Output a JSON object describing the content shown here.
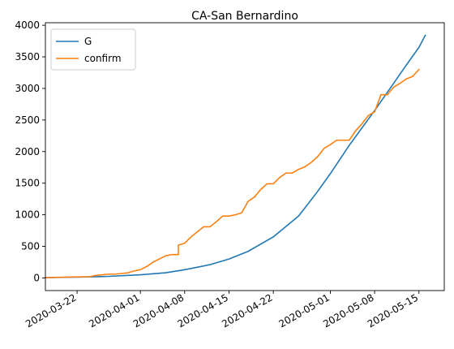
{
  "chart_data": {
    "type": "line",
    "title": "CA-San Bernardino",
    "xlabel": "",
    "ylabel": "",
    "ylim": [
      -200,
      4040
    ],
    "x_range": [
      "2020-03-17",
      "2020-05-19"
    ],
    "grid": false,
    "legend_position": "top-left",
    "y_ticks": [
      0,
      500,
      1000,
      1500,
      2000,
      2500,
      3000,
      3500,
      4000
    ],
    "x_ticks": [
      {
        "date": "2020-03-22",
        "label": "2020-03-22"
      },
      {
        "date": "2020-04-01",
        "label": "2020-04-01"
      },
      {
        "date": "2020-04-08",
        "label": "2020-04-08"
      },
      {
        "date": "2020-04-15",
        "label": "2020-04-15"
      },
      {
        "date": "2020-04-22",
        "label": "2020-04-22"
      },
      {
        "date": "2020-05-01",
        "label": "2020-05-01"
      },
      {
        "date": "2020-05-08",
        "label": "2020-05-08"
      },
      {
        "date": "2020-05-15",
        "label": "2020-05-15"
      }
    ],
    "series": [
      {
        "name": "G",
        "color": "#1f77b4",
        "points": [
          [
            "2020-03-17",
            5
          ],
          [
            "2020-03-22",
            12
          ],
          [
            "2020-03-27",
            25
          ],
          [
            "2020-04-01",
            50
          ],
          [
            "2020-04-05",
            82
          ],
          [
            "2020-04-08",
            130
          ],
          [
            "2020-04-12",
            210
          ],
          [
            "2020-04-15",
            300
          ],
          [
            "2020-04-18",
            420
          ],
          [
            "2020-04-22",
            650
          ],
          [
            "2020-04-26",
            980
          ],
          [
            "2020-04-29",
            1370
          ],
          [
            "2020-05-01",
            1650
          ],
          [
            "2020-05-04",
            2100
          ],
          [
            "2020-05-08",
            2650
          ],
          [
            "2020-05-11",
            3080
          ],
          [
            "2020-05-13",
            3370
          ],
          [
            "2020-05-15",
            3650
          ],
          [
            "2020-05-16",
            3840
          ]
        ]
      },
      {
        "name": "confirm",
        "color": "#ff7f0e",
        "points": [
          [
            "2020-03-17",
            5
          ],
          [
            "2020-03-19",
            10
          ],
          [
            "2020-03-21",
            15
          ],
          [
            "2020-03-24",
            20
          ],
          [
            "2020-03-25",
            40
          ],
          [
            "2020-03-26",
            50
          ],
          [
            "2020-03-27",
            60
          ],
          [
            "2020-03-28",
            60
          ],
          [
            "2020-03-29",
            70
          ],
          [
            "2020-03-30",
            80
          ],
          [
            "2020-03-31",
            110
          ],
          [
            "2020-04-01",
            130
          ],
          [
            "2020-04-02",
            180
          ],
          [
            "2020-04-03",
            250
          ],
          [
            "2020-04-04",
            300
          ],
          [
            "2020-04-05",
            350
          ],
          [
            "2020-04-06",
            370
          ],
          [
            "2020-04-07",
            370
          ],
          [
            "2020-04-07",
            520
          ],
          [
            "2020-04-08",
            550
          ],
          [
            "2020-04-09",
            650
          ],
          [
            "2020-04-10",
            730
          ],
          [
            "2020-04-11",
            810
          ],
          [
            "2020-04-12",
            810
          ],
          [
            "2020-04-13",
            890
          ],
          [
            "2020-04-14",
            980
          ],
          [
            "2020-04-15",
            980
          ],
          [
            "2020-04-16",
            1000
          ],
          [
            "2020-04-17",
            1030
          ],
          [
            "2020-04-18",
            1210
          ],
          [
            "2020-04-19",
            1280
          ],
          [
            "2020-04-20",
            1400
          ],
          [
            "2020-04-21",
            1490
          ],
          [
            "2020-04-22",
            1490
          ],
          [
            "2020-04-23",
            1590
          ],
          [
            "2020-04-24",
            1660
          ],
          [
            "2020-04-25",
            1660
          ],
          [
            "2020-04-26",
            1720
          ],
          [
            "2020-04-27",
            1760
          ],
          [
            "2020-04-28",
            1830
          ],
          [
            "2020-04-29",
            1920
          ],
          [
            "2020-04-30",
            2050
          ],
          [
            "2020-05-01",
            2110
          ],
          [
            "2020-05-02",
            2180
          ],
          [
            "2020-05-03",
            2180
          ],
          [
            "2020-05-04",
            2180
          ],
          [
            "2020-05-05",
            2330
          ],
          [
            "2020-05-06",
            2440
          ],
          [
            "2020-05-07",
            2570
          ],
          [
            "2020-05-08",
            2630
          ],
          [
            "2020-05-09",
            2900
          ],
          [
            "2020-05-10",
            2900
          ],
          [
            "2020-05-11",
            3020
          ],
          [
            "2020-05-12",
            3080
          ],
          [
            "2020-05-13",
            3150
          ],
          [
            "2020-05-14",
            3190
          ],
          [
            "2020-05-15",
            3300
          ]
        ]
      }
    ]
  }
}
